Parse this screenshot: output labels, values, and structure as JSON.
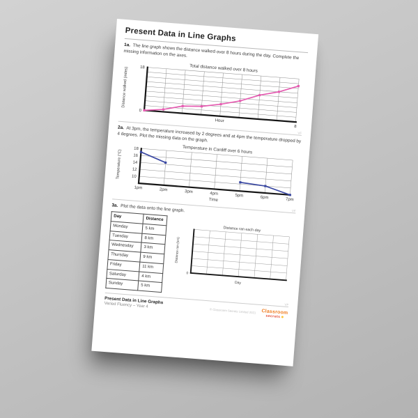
{
  "page": {
    "title": "Present Data in Line Graphs",
    "section_marker": "VF"
  },
  "questions": [
    {
      "number": "1a.",
      "text": "The line graph shows the distance walked over 8 hours during the day. Complete the missing information on the axes."
    },
    {
      "number": "2a.",
      "text": "At 3pm, the temperature increased by 2 degrees and at 4pm the temperature dropped by 4 degrees. Plot the missing data on the graph."
    },
    {
      "number": "3a.",
      "text": "Plot the data onto the line graph."
    }
  ],
  "table": {
    "headers": [
      "Day",
      "Distance"
    ],
    "rows": [
      [
        "Monday",
        "5 km"
      ],
      [
        "Tuesday",
        "8 km"
      ],
      [
        "Wednesday",
        "3 km"
      ],
      [
        "Thursday",
        "9 km"
      ],
      [
        "Friday",
        "11 km"
      ],
      [
        "Saturday",
        "4 km"
      ],
      [
        "Sunday",
        "5 km"
      ]
    ]
  },
  "chart_data": [
    {
      "type": "line",
      "title": "Total distance walked over 8 hours",
      "xlabel": "Hour",
      "ylabel": "Distance walked (miles)",
      "x": [
        0,
        1,
        2,
        3,
        4,
        5,
        6,
        7,
        8
      ],
      "values": [
        0,
        1,
        3,
        3.5,
        5,
        7,
        10,
        12,
        15
      ],
      "ylim": [
        0,
        18
      ],
      "grid_rows": 9,
      "grid_cols": 8,
      "yticks": [
        {
          "value": 18,
          "label": "18"
        },
        {
          "value": 0,
          "label": "0"
        }
      ],
      "xticks": [
        {
          "value": 8,
          "label": "8"
        }
      ],
      "line_color": "#e55cb1",
      "legend": "none",
      "grid": "on"
    },
    {
      "type": "line",
      "title": "Temperature in Cardiff over 6 hours",
      "xlabel": "Time",
      "ylabel": "Temperature (°C)",
      "categories": [
        "1pm",
        "2pm",
        "3pm",
        "4pm",
        "5pm",
        "6pm",
        "7pm"
      ],
      "values": [
        17,
        14.5,
        null,
        null,
        10.5,
        10,
        8
      ],
      "ylim": [
        8,
        18
      ],
      "grid_rows": 5,
      "grid_cols": 6,
      "yticks": [
        {
          "value": 18,
          "label": "18"
        },
        {
          "value": 16,
          "label": "16"
        },
        {
          "value": 14,
          "label": "14"
        },
        {
          "value": 12,
          "label": "12"
        },
        {
          "value": 10,
          "label": "10"
        }
      ],
      "line_color": "#3b49a3",
      "legend": "none",
      "grid": "on"
    },
    {
      "type": "line",
      "title": "Distance ran each day",
      "xlabel": "Day",
      "ylabel": "Distance ran (km)",
      "values": [],
      "ylim": [
        0,
        6
      ],
      "grid_rows": 6,
      "grid_cols": 6,
      "yticks": [
        {
          "value": 0,
          "label": "0"
        }
      ],
      "line_color": "#3b49a3",
      "legend": "none",
      "grid": "on"
    }
  ],
  "footer": {
    "title": "Present Data in Line Graphs",
    "subtitle": "Varied Fluency – Year 4",
    "copyright": "© Classroom Secrets Limited 2021",
    "logo_top": "Classroom",
    "logo_bottom": "secrets"
  }
}
